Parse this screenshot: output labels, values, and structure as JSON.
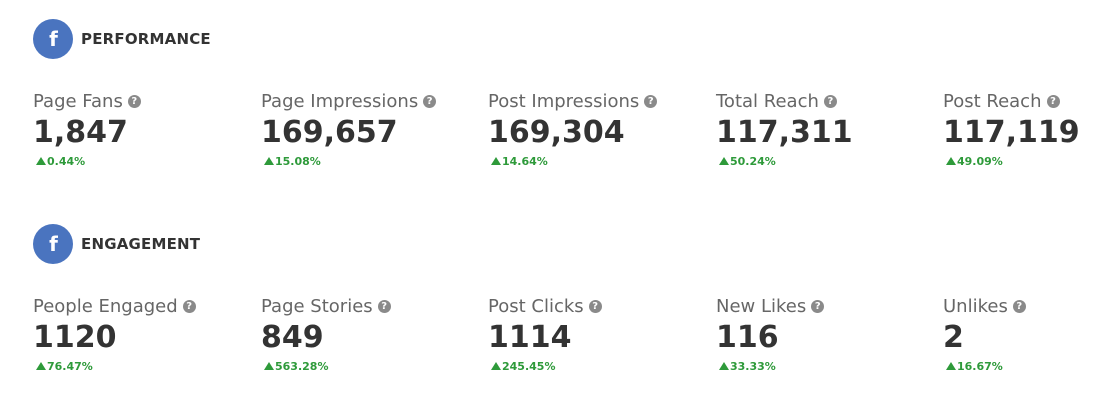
{
  "performance": {
    "icon": "facebook-icon",
    "icon_glyph": "f",
    "title": "PERFORMANCE",
    "metrics": [
      {
        "label": "Page Fans",
        "value": "1,847",
        "change": "0.44%",
        "trend": "up"
      },
      {
        "label": "Page Impressions",
        "value": "169,657",
        "change": "15.08%",
        "trend": "up"
      },
      {
        "label": "Post Impressions",
        "value": "169,304",
        "change": "14.64%",
        "trend": "up"
      },
      {
        "label": "Total Reach",
        "value": "117,311",
        "change": "50.24%",
        "trend": "up"
      },
      {
        "label": "Post Reach",
        "value": "117,119",
        "change": "49.09%",
        "trend": "up"
      }
    ]
  },
  "engagement": {
    "icon": "facebook-icon",
    "icon_glyph": "f",
    "title": "ENGAGEMENT",
    "metrics": [
      {
        "label": "People Engaged",
        "value": "1120",
        "change": "76.47%",
        "trend": "up"
      },
      {
        "label": "Page Stories",
        "value": "849",
        "change": "563.28%",
        "trend": "up"
      },
      {
        "label": "Post Clicks",
        "value": "1114",
        "change": "245.45%",
        "trend": "up"
      },
      {
        "label": "New Likes",
        "value": "116",
        "change": "33.33%",
        "trend": "up"
      },
      {
        "label": "Unlikes",
        "value": "2",
        "change": "16.67%",
        "trend": "up"
      }
    ]
  },
  "help_glyph": "?",
  "colors": {
    "facebook_blue": "#4a74bf",
    "positive_green": "#2e9a3a",
    "value_text": "#333333",
    "label_text": "#666666",
    "help_icon": "#8a8a8a"
  }
}
